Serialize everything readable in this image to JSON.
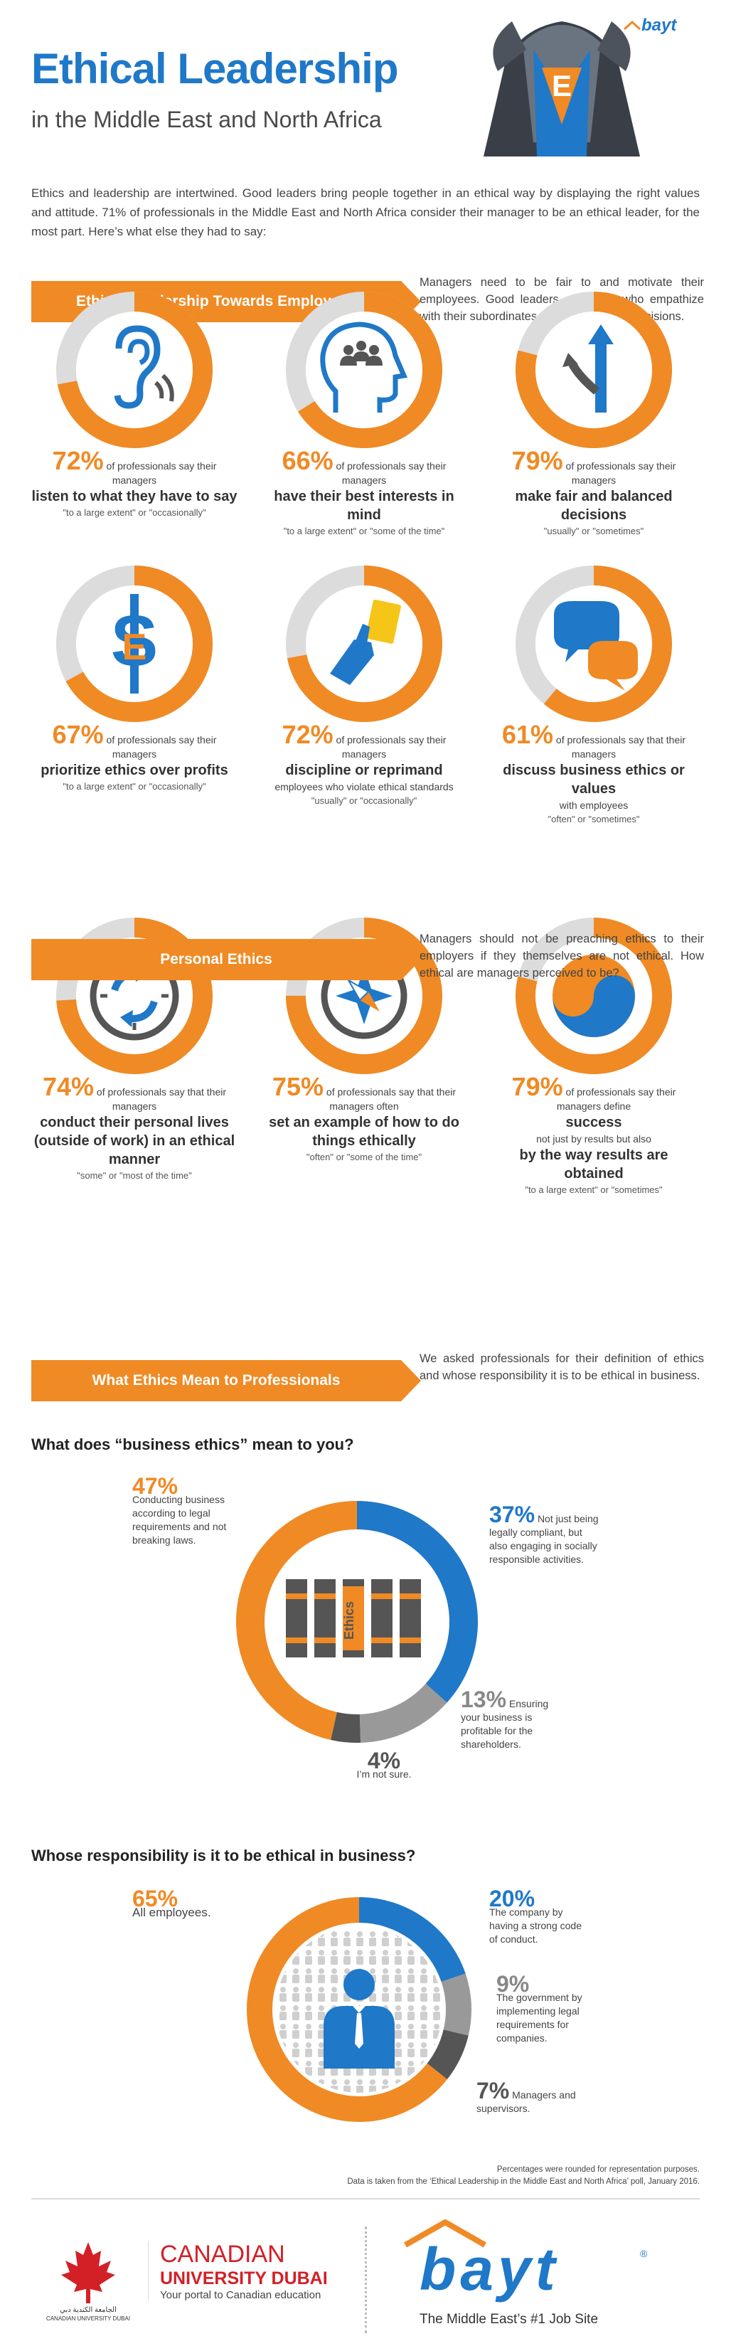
{
  "header": {
    "title": "Ethical Leadership",
    "subtitle": "in the Middle East and North Africa",
    "brand": "bayt"
  },
  "intro": "Ethics and leadership are intertwined. Good leaders bring people together in an ethical way by displaying the right values and attitude. 71% of professionals in the Middle East and North Africa consider their manager to be an ethical leader, for the most part. Here’s what else they had to say:",
  "sections": {
    "employees": {
      "title": "Ethical Leadership Towards Employees",
      "description": "Managers need to be fair to and motivate their employees. Good leaders are those who empathize with their subordinates and make ethical decisions."
    },
    "personal": {
      "title": "Personal Ethics",
      "description": "Managers should not be preaching ethics to their employers if they themselves are not ethical. How ethical are managers perceived to be?"
    },
    "meaning": {
      "title": "What Ethics Mean to Professionals",
      "description": "We asked professionals for their definition of ethics and whose responsibility it is to be ethical in business."
    }
  },
  "stats": [
    {
      "value": 72,
      "pct": "72%",
      "pre": "of professionals say their managers",
      "bold": "listen to what they have to say",
      "post": "",
      "note": "\"to a large extent\" or \"occasionally\"",
      "icon": "ear-icon"
    },
    {
      "value": 66,
      "pct": "66%",
      "pre": "of professionals say their managers",
      "bold": "have their best interests in mind",
      "post": "",
      "note": "\"to a large extent\" or \"some of the time\"",
      "icon": "head-people-icon"
    },
    {
      "value": 79,
      "pct": "79%",
      "pre": "of professionals say their managers",
      "bold": "make fair and balanced decisions",
      "post": "",
      "note": "\"usually\" or \"sometimes\"",
      "icon": "arrow-split-icon"
    },
    {
      "value": 67,
      "pct": "67%",
      "pre": "of professionals say their managers",
      "bold": "prioritize ethics over profits",
      "post": "",
      "note": "\"to a large extent\" or \"occasionally\"",
      "icon": "ethics-dollar-icon"
    },
    {
      "value": 72,
      "pct": "72%",
      "pre": "of professionals say their managers",
      "bold": "discipline or reprimand",
      "post": "employees who violate ethical standards",
      "note": "\"usually\" or \"occasionally\"",
      "icon": "yellow-card-icon"
    },
    {
      "value": 61,
      "pct": "61%",
      "pre": "of professionals say that their managers",
      "bold": "discuss business ethics or values",
      "post": "with employees",
      "note": "\"often\" or \"sometimes\"",
      "icon": "speech-bubbles-icon"
    },
    {
      "value": 74,
      "pct": "74%",
      "pre": "of professionals say that their managers",
      "bold": "conduct their personal lives (outside of work) in an ethical manner",
      "post": "",
      "note": "\"some\" or \"most of the time\"",
      "icon": "clock-icon"
    },
    {
      "value": 75,
      "pct": "75%",
      "pre": "of professionals say that their managers often",
      "bold": "set an example of how to do things ethically",
      "post": "",
      "note": "\"often\" or \"some of the time\"",
      "icon": "compass-icon"
    },
    {
      "value": 79,
      "pct": "79%",
      "pre": "of professionals say their managers define",
      "bold": "success",
      "post": "not just by results but also",
      "bold2": "by the way results are obtained",
      "note": "\"to a large extent\" or \"sometimes\"",
      "icon": "yin-yang-icon"
    }
  ],
  "q1": {
    "question": "What does “business ethics” mean to you?",
    "book_label": "Ethics",
    "items": [
      {
        "pct": "47%",
        "value": 47,
        "text": "Conducting business according to legal requirements and not breaking laws.",
        "color": "#f08a24"
      },
      {
        "pct": "37%",
        "value": 37,
        "text": "Not just being legally compliant, but also engaging in socially responsible activities.",
        "color": "#1f78c8"
      },
      {
        "pct": "13%",
        "value": 13,
        "text": "Ensuring your business is profitable for the shareholders.",
        "color": "#999999"
      },
      {
        "pct": "4%",
        "value": 4,
        "text": "I’m not sure.",
        "color": "#555555"
      }
    ]
  },
  "q2": {
    "question": "Whose responsibility is it to be ethical in business?",
    "items": [
      {
        "pct": "65%",
        "value": 65,
        "text": "All employees.",
        "color": "#f08a24"
      },
      {
        "pct": "20%",
        "value": 20,
        "text": "The company by having a strong code of conduct.",
        "color": "#1f78c8"
      },
      {
        "pct": "9%",
        "value": 9,
        "text": "The government by implementing legal requirements for companies.",
        "color": "#999999"
      },
      {
        "pct": "7%",
        "value": 7,
        "text": "Managers and supervisors.",
        "color": "#555555"
      }
    ]
  },
  "notes": {
    "line1": "Percentages were rounded for representation purposes.",
    "line2": "Data is taken from the ‘Ethical Leadership in the Middle East and North Africa’ poll, January 2016."
  },
  "footer": {
    "cud_arabic": "الجامعة الكندية دبي",
    "cud_arabic_en": "CANADIAN UNIVERSITY DUBAI",
    "cud_line1": "CANADIAN",
    "cud_line2": "UNIVERSITY DUBAI",
    "cud_tagline": "Your portal to Canadian education",
    "bayt": "bayt",
    "bayt_reg": "®",
    "bayt_tagline": "The Middle East’s #1 Job Site"
  },
  "colors": {
    "orange": "#f08a24",
    "blue": "#1f78c8",
    "grey": "#dcdcdc"
  }
}
